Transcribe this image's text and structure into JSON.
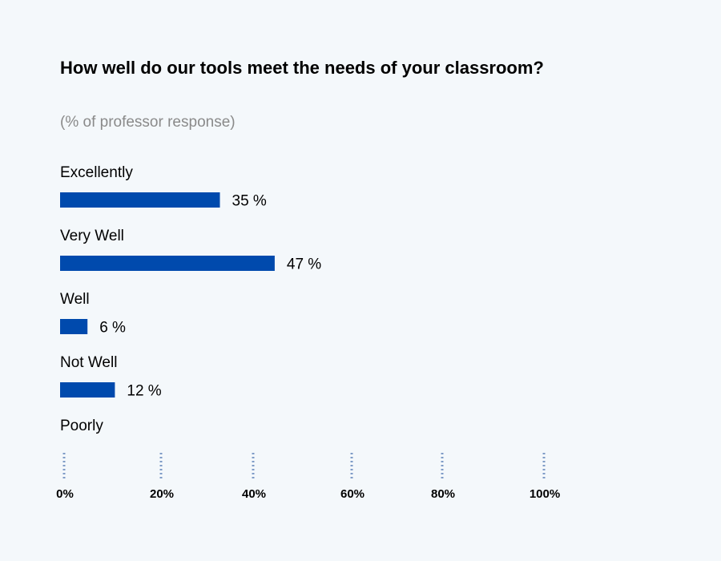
{
  "chart_data": {
    "type": "bar",
    "orientation": "horizontal",
    "title": "How well do our tools meet the needs of your classroom?",
    "subtitle": "(% of professor response)",
    "categories": [
      "Excellently",
      "Very Well",
      "Well",
      "Not Well",
      "Poorly"
    ],
    "values": [
      35,
      47,
      6,
      12,
      null
    ],
    "data_labels": [
      "35 %",
      "47 %",
      "6 %",
      "12 %",
      ""
    ],
    "x_ticks": [
      "0%",
      "20%",
      "40%",
      "60%",
      "80%",
      "100%"
    ],
    "xlim": [
      0,
      100
    ],
    "grid": false,
    "colors": {
      "bar": "#004aad",
      "tick_marks": "#7f9cc7",
      "background": "#f4f8fb",
      "title": "#000000",
      "subtitle": "#8a8a8a"
    }
  }
}
